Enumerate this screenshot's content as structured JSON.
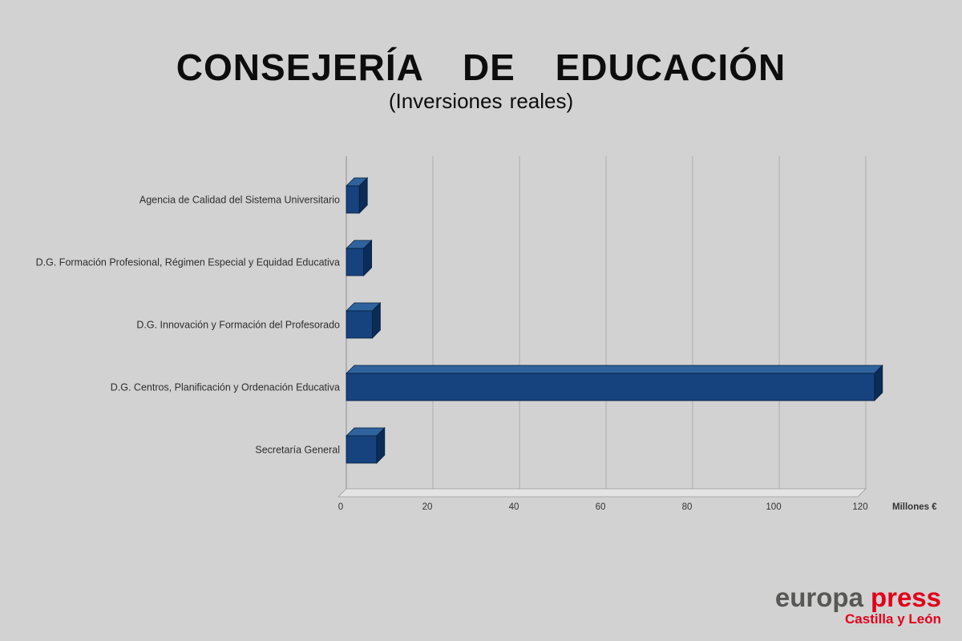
{
  "page": {
    "background": "#d2d2d2"
  },
  "title": "CONSEJERÍA DE EDUCACIÓN",
  "subtitle": "(Inversiones reales)",
  "chart_data": {
    "type": "bar",
    "orientation": "horizontal",
    "title": "CONSEJERÍA DE EDUCACIÓN",
    "subtitle": "(Inversiones reales)",
    "categories": [
      "Agencia de Calidad del Sistema Universitario",
      "D.G. Formación Profesional, Régimen Especial y Equidad Educativa",
      "D.G. Innovación y Formación del Profesorado",
      "D.G. Centros, Planificación y Ordenación Educativa",
      "Secretaría General"
    ],
    "values": [
      3,
      4,
      6,
      122,
      7
    ],
    "xlabel": "Millones €",
    "ylabel": "",
    "xlim": [
      0,
      124
    ],
    "xticks": [
      0,
      20,
      40,
      60,
      80,
      100,
      120
    ],
    "grid": true,
    "style_3d": true,
    "bar_color": "#16437e",
    "bar_top_color": "#2f639c",
    "bar_side_color": "#0a2c56",
    "bar_outline_color": "#081f3d",
    "grid_color": "#adadad",
    "floor_color": "#e4e4e4",
    "label_color": "#2e2e2e",
    "tick_color": "#333333"
  },
  "branding": {
    "brand_left": "europa",
    "brand_right": "press",
    "region": "Castilla y León",
    "brand_left_color": "#575756",
    "brand_right_color": "#e2001a"
  }
}
